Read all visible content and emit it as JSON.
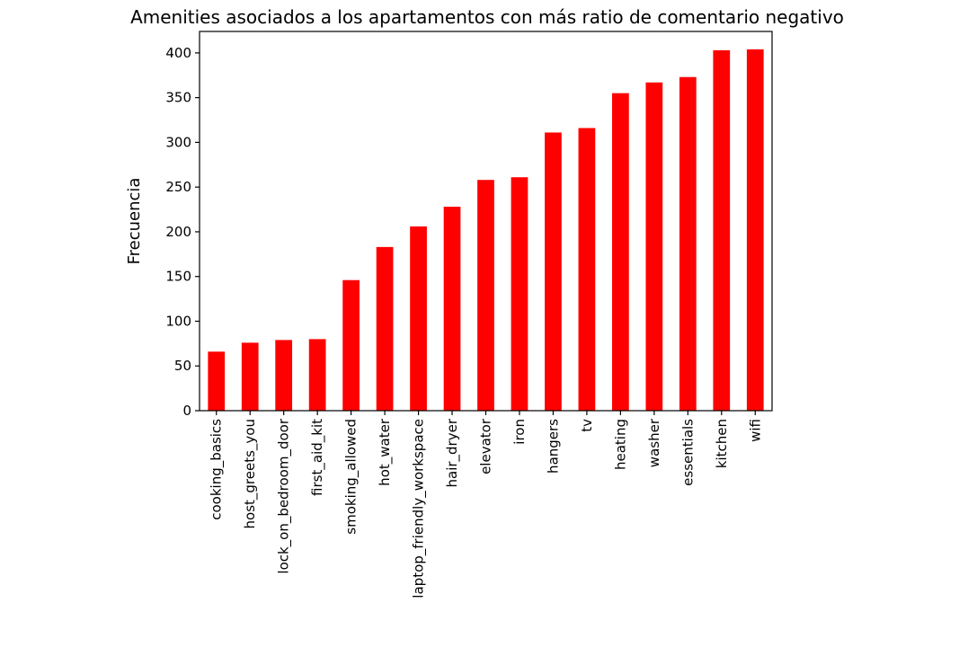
{
  "chart_data": {
    "type": "bar",
    "title": "Amenities asociados a los apartamentos con más ratio de comentario negativo",
    "xlabel": "",
    "ylabel": "Frecuencia",
    "categories": [
      "cooking_basics",
      "host_greets_you",
      "lock_on_bedroom_door",
      "first_aid_kit",
      "smoking_allowed",
      "hot_water",
      "laptop_friendly_workspace",
      "hair_dryer",
      "elevator",
      "iron",
      "hangers",
      "tv",
      "heating",
      "washer",
      "essentials",
      "kitchen",
      "wifi"
    ],
    "values": [
      66,
      76,
      79,
      80,
      146,
      183,
      206,
      228,
      258,
      261,
      311,
      316,
      355,
      367,
      373,
      403,
      404
    ],
    "ylim": [
      0,
      424
    ],
    "yticks": [
      0,
      50,
      100,
      150,
      200,
      250,
      300,
      350,
      400
    ],
    "bar_color": "#ff0000",
    "grid": false,
    "legend": "none"
  }
}
